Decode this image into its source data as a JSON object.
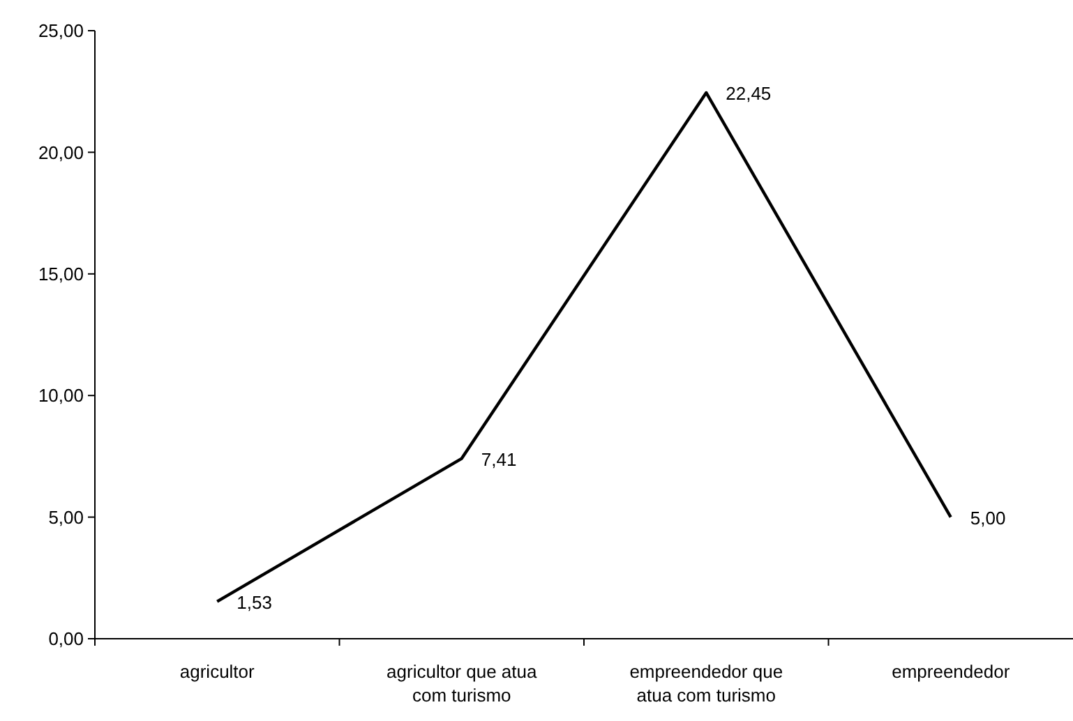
{
  "chart_data": {
    "type": "line",
    "categories": [
      "agricultor",
      "agricultor que atua com turismo",
      "empreendedor que atua com turismo",
      "empreendedor"
    ],
    "series": [
      {
        "color": "#000000",
        "values": [
          1.53,
          7.41,
          22.45,
          5.0
        ],
        "value_labels": [
          "1,53",
          "7,41",
          "22,45",
          "5,00"
        ]
      }
    ],
    "ylim": [
      0,
      25
    ],
    "yticks": [
      {
        "value": 0,
        "label": "0,00"
      },
      {
        "value": 5,
        "label": "5,00"
      },
      {
        "value": 10,
        "label": "10,00"
      },
      {
        "value": 15,
        "label": "15,00"
      },
      {
        "value": 20,
        "label": "20,00"
      },
      {
        "value": 25,
        "label": "25,00"
      }
    ],
    "marker": "none",
    "line_style": "solid"
  }
}
